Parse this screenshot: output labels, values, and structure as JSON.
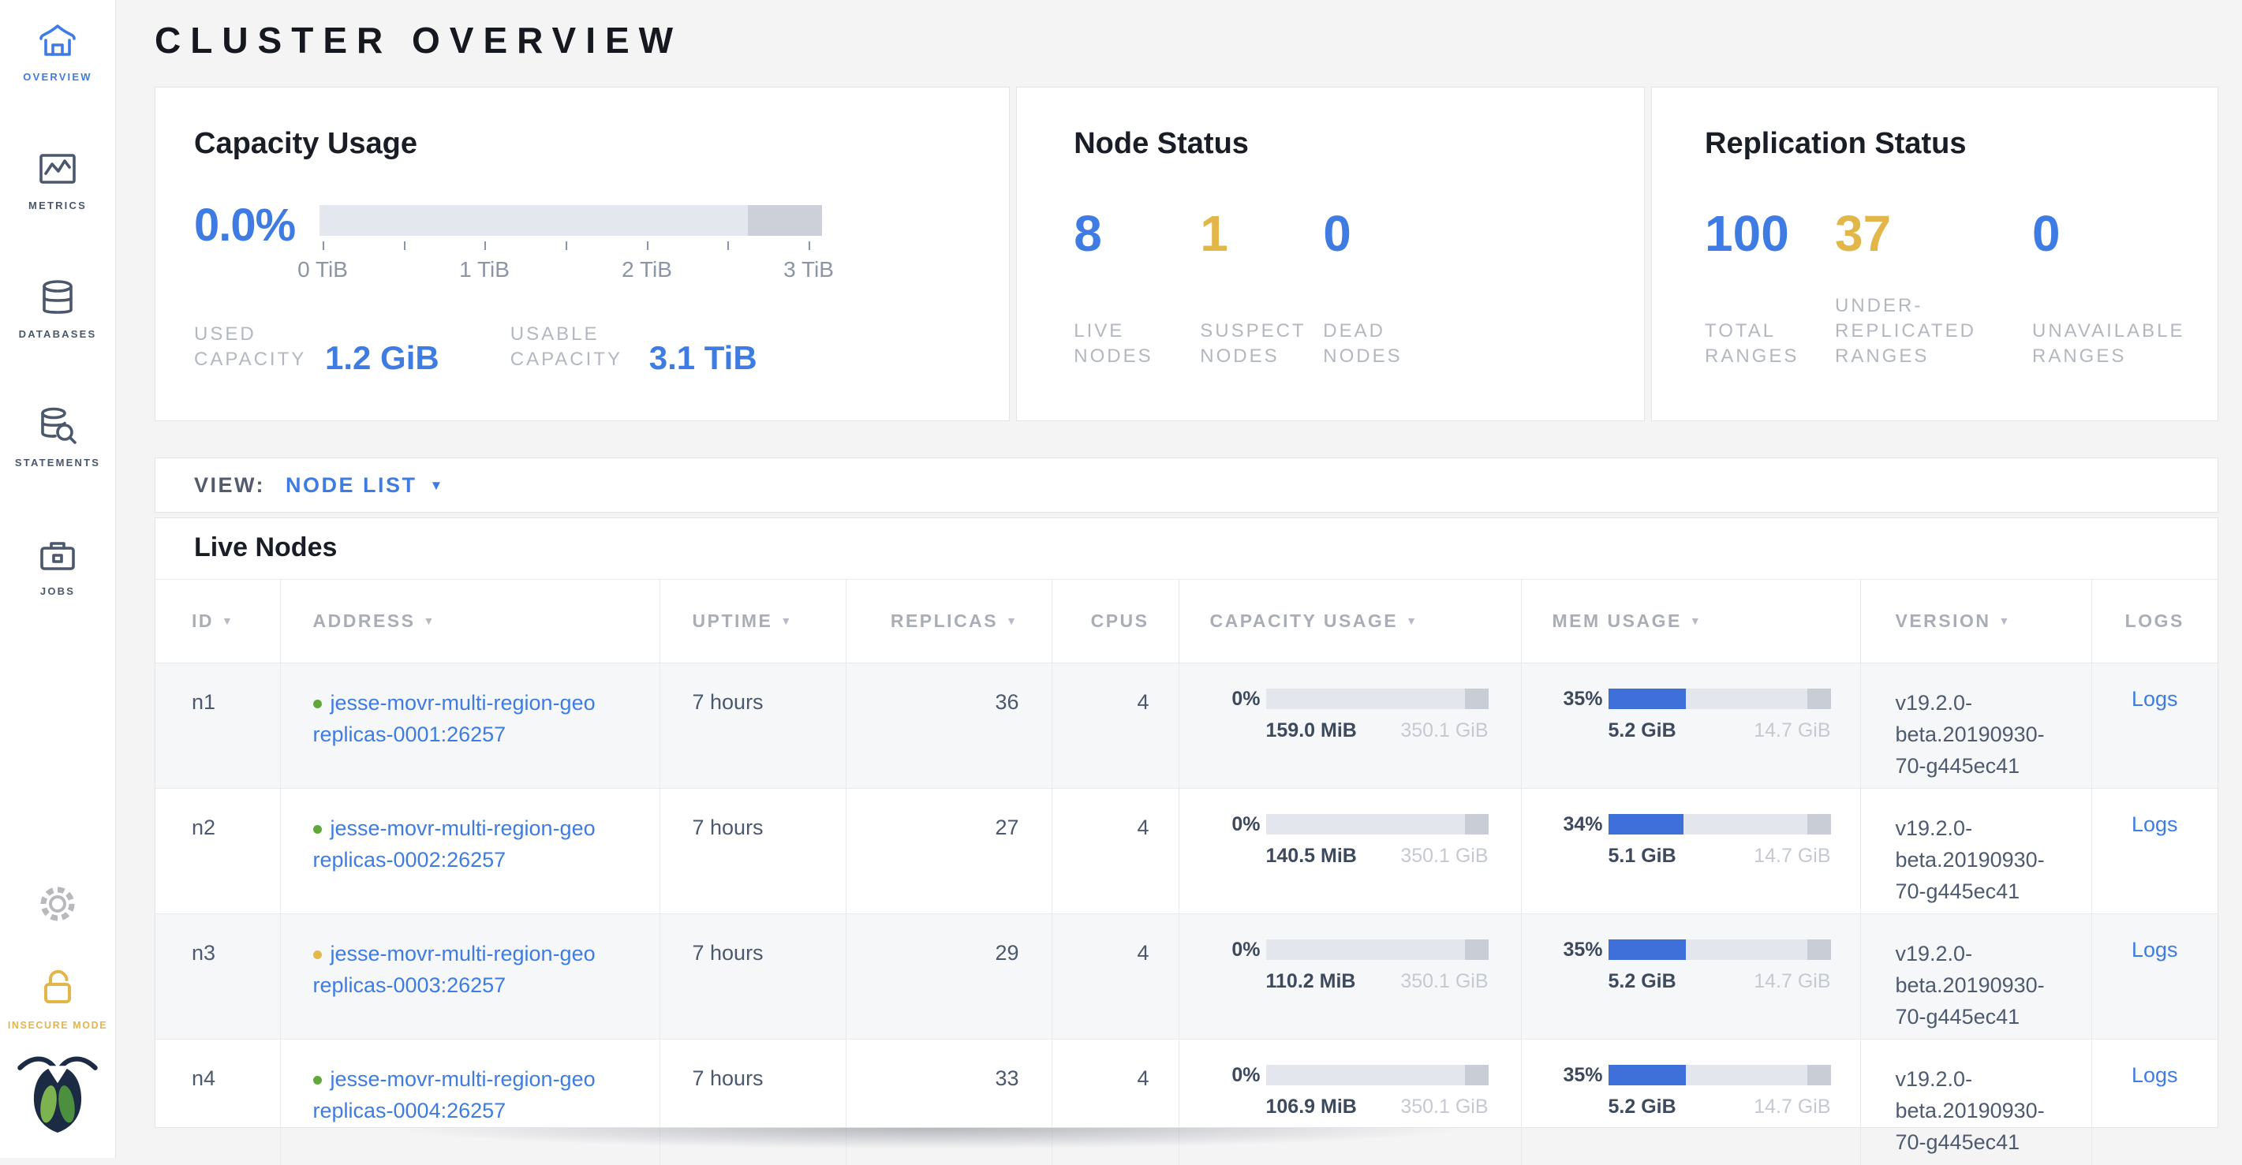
{
  "page_title": "CLUSTER OVERVIEW",
  "colors": {
    "accent_blue": "#3e7ce4",
    "bar_blue": "#3f6fd9",
    "warning_yellow": "#e3b64a",
    "status_green": "#61a83a",
    "status_yellow": "#e3ba4a"
  },
  "sidebar": {
    "items": [
      {
        "label": "OVERVIEW",
        "icon": "home-icon",
        "active": true
      },
      {
        "label": "METRICS",
        "icon": "metrics-icon",
        "active": false
      },
      {
        "label": "DATABASES",
        "icon": "databases-icon",
        "active": false
      },
      {
        "label": "STATEMENTS",
        "icon": "statements-icon",
        "active": false
      },
      {
        "label": "JOBS",
        "icon": "jobs-icon",
        "active": false
      }
    ],
    "insecure_mode_label": "INSECURE MODE"
  },
  "summary": {
    "capacity_usage": {
      "title": "Capacity Usage",
      "percent_used": "0.0%",
      "axis_ticks": [
        "0 TiB",
        "1 TiB",
        "2 TiB",
        "3 TiB"
      ],
      "used": {
        "label": "USED CAPACITY",
        "value": "1.2 GiB"
      },
      "usable": {
        "label": "USABLE CAPACITY",
        "value": "3.1 TiB"
      }
    },
    "node_status": {
      "title": "Node Status",
      "stats": [
        {
          "value": "8",
          "label": "LIVE NODES",
          "color": "blue"
        },
        {
          "value": "1",
          "label": "SUSPECT NODES",
          "color": "yellow"
        },
        {
          "value": "0",
          "label": "DEAD NODES",
          "color": "blue"
        }
      ]
    },
    "replication_status": {
      "title": "Replication Status",
      "stats": [
        {
          "value": "100",
          "label": "TOTAL RANGES",
          "color": "blue"
        },
        {
          "value": "37",
          "label": "UNDER-REPLICATED RANGES",
          "color": "yellow"
        },
        {
          "value": "0",
          "label": "UNAVAILABLE RANGES",
          "color": "blue"
        }
      ]
    }
  },
  "view_bar": {
    "label": "VIEW:",
    "selected": "NODE LIST"
  },
  "live_nodes": {
    "title": "Live Nodes",
    "columns": [
      {
        "label": "ID",
        "sortable": true
      },
      {
        "label": "ADDRESS",
        "sortable": true
      },
      {
        "label": "UPTIME",
        "sortable": true
      },
      {
        "label": "REPLICAS",
        "sortable": true
      },
      {
        "label": "CPUS",
        "sortable": false
      },
      {
        "label": "CAPACITY USAGE",
        "sortable": true
      },
      {
        "label": "MEM USAGE",
        "sortable": true
      },
      {
        "label": "VERSION",
        "sortable": true
      },
      {
        "label": "LOGS",
        "sortable": false
      }
    ],
    "rows": [
      {
        "id": "n1",
        "status": "green",
        "address_line1": "jesse-movr-multi-region-geo",
        "address_line2": "replicas-0001:26257",
        "uptime": "7 hours",
        "replicas": "36",
        "cpus": "4",
        "capacity": {
          "percent": "0%",
          "fill_pct": 0,
          "used": "159.0 MiB",
          "total": "350.1 GiB"
        },
        "memory": {
          "percent": "35%",
          "fill_pct": 35,
          "used": "5.2 GiB",
          "total": "14.7 GiB"
        },
        "version": "v19.2.0-beta.20190930-70-g445ec41",
        "logs": "Logs"
      },
      {
        "id": "n2",
        "status": "green",
        "address_line1": "jesse-movr-multi-region-geo",
        "address_line2": "replicas-0002:26257",
        "uptime": "7 hours",
        "replicas": "27",
        "cpus": "4",
        "capacity": {
          "percent": "0%",
          "fill_pct": 0,
          "used": "140.5 MiB",
          "total": "350.1 GiB"
        },
        "memory": {
          "percent": "34%",
          "fill_pct": 34,
          "used": "5.1 GiB",
          "total": "14.7 GiB"
        },
        "version": "v19.2.0-beta.20190930-70-g445ec41",
        "logs": "Logs"
      },
      {
        "id": "n3",
        "status": "yellow",
        "address_line1": "jesse-movr-multi-region-geo",
        "address_line2": "replicas-0003:26257",
        "uptime": "7 hours",
        "replicas": "29",
        "cpus": "4",
        "capacity": {
          "percent": "0%",
          "fill_pct": 0,
          "used": "110.2 MiB",
          "total": "350.1 GiB"
        },
        "memory": {
          "percent": "35%",
          "fill_pct": 35,
          "used": "5.2 GiB",
          "total": "14.7 GiB"
        },
        "version": "v19.2.0-beta.20190930-70-g445ec41",
        "logs": "Logs"
      },
      {
        "id": "n4",
        "status": "green",
        "address_line1": "jesse-movr-multi-region-geo",
        "address_line2": "replicas-0004:26257",
        "uptime": "7 hours",
        "replicas": "33",
        "cpus": "4",
        "capacity": {
          "percent": "0%",
          "fill_pct": 0,
          "used": "106.9 MiB",
          "total": "350.1 GiB"
        },
        "memory": {
          "percent": "35%",
          "fill_pct": 35,
          "used": "5.2 GiB",
          "total": "14.7 GiB"
        },
        "version": "v19.2.0-beta.20190930-70-g445ec41",
        "logs": "Logs"
      }
    ]
  }
}
